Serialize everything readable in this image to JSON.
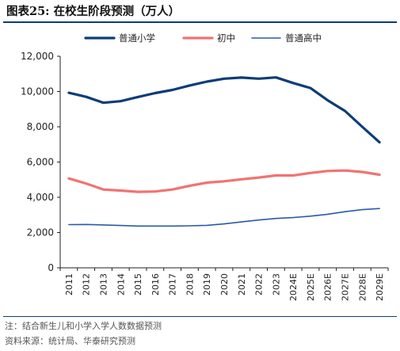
{
  "header": {
    "title": "图表25:  在校生阶段预测（万人）"
  },
  "footer": {
    "note": "注：结合新生儿和小学入学人数数据预测",
    "source": "资料来源：统计局、华泰研究预测"
  },
  "chart_data": {
    "type": "line",
    "title": "",
    "xlabel": "",
    "ylabel": "",
    "ylim": [
      0,
      12000
    ],
    "yticks": [
      0,
      2000,
      4000,
      6000,
      8000,
      10000,
      12000
    ],
    "ytick_labels": [
      "0",
      "2,000",
      "4,000",
      "6,000",
      "8,000",
      "10,000",
      "12,000"
    ],
    "grid": false,
    "legend_position": "top",
    "categories": [
      "2011",
      "2012",
      "2013",
      "2014",
      "2015",
      "2016",
      "2017",
      "2018",
      "2019",
      "2020",
      "2021",
      "2022",
      "2023",
      "2024E",
      "2025E",
      "2026E",
      "2027E",
      "2028E",
      "2029E"
    ],
    "series": [
      {
        "name": "普通小学",
        "color": "#0b3d78",
        "values": [
          9930,
          9700,
          9360,
          9450,
          9690,
          9910,
          10090,
          10340,
          10560,
          10730,
          10790,
          10730,
          10800,
          10480,
          10200,
          9500,
          8900,
          8000,
          7120
        ]
      },
      {
        "name": "初中",
        "color": "#f07372",
        "values": [
          5070,
          4780,
          4440,
          4380,
          4310,
          4330,
          4440,
          4650,
          4830,
          4910,
          5020,
          5120,
          5240,
          5240,
          5380,
          5490,
          5520,
          5440,
          5280
        ]
      },
      {
        "name": "普通高中",
        "color": "#2a5aa8",
        "values": [
          2450,
          2460,
          2430,
          2400,
          2370,
          2370,
          2370,
          2380,
          2410,
          2490,
          2600,
          2710,
          2800,
          2850,
          2930,
          3040,
          3180,
          3300,
          3360
        ]
      }
    ]
  }
}
